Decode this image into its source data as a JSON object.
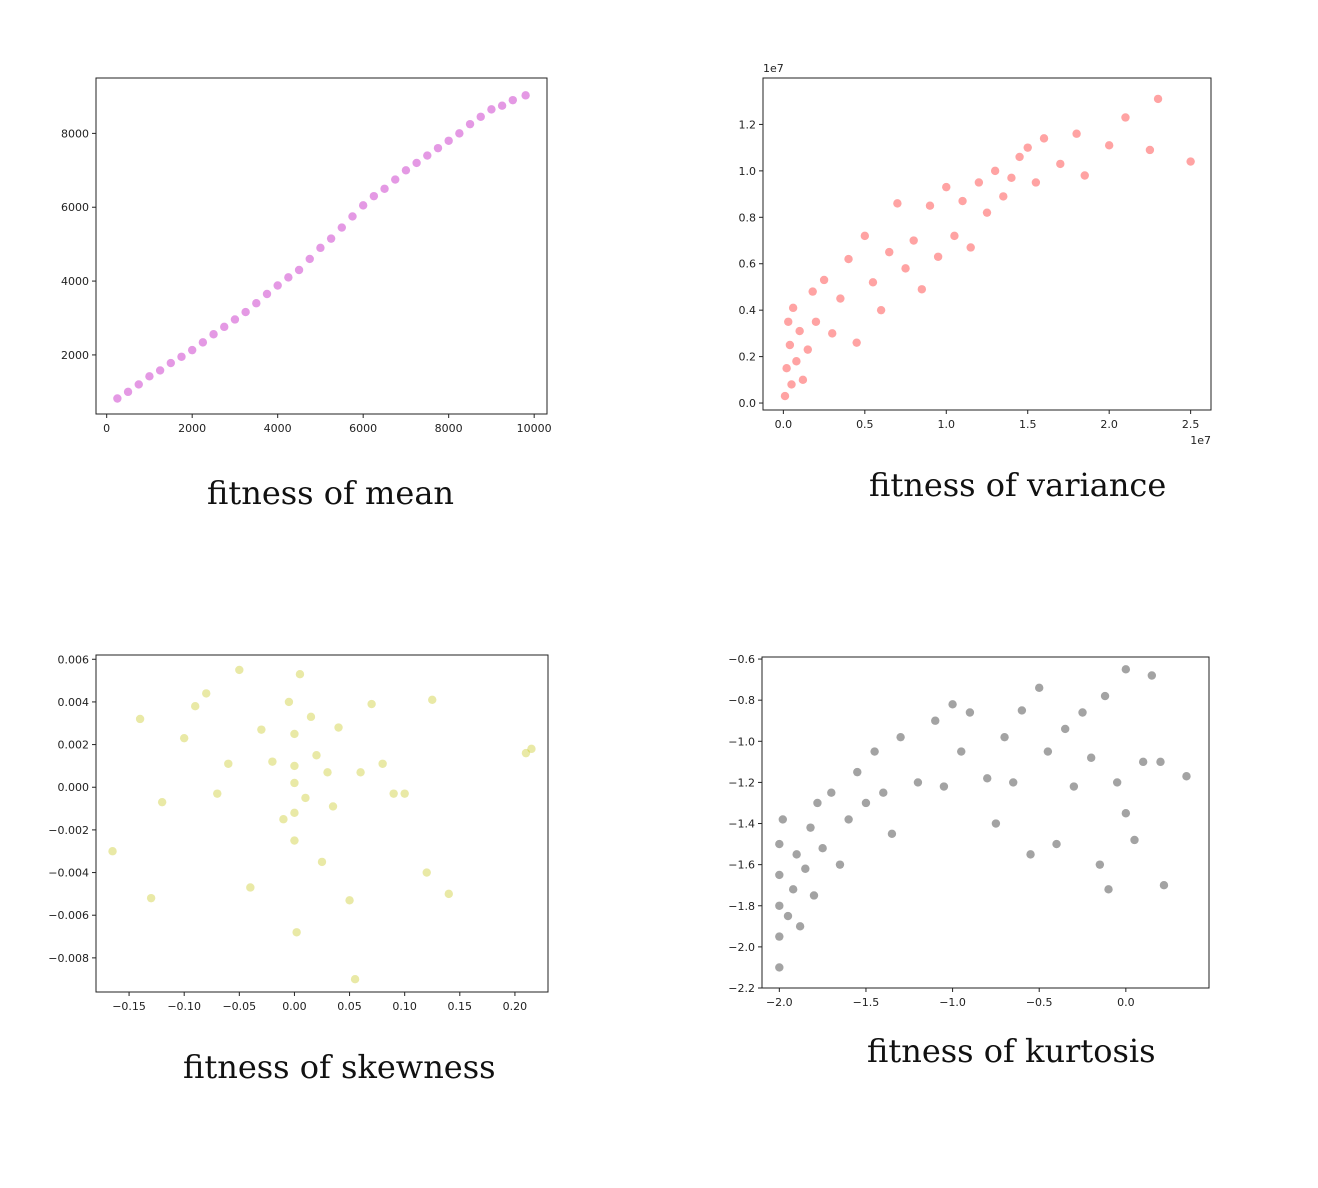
{
  "colors": {
    "mean": "#bb00bb",
    "variance": "#ff1a1a",
    "skewness": "#c8c820",
    "kurtosis": "#333333"
  },
  "captions": {
    "mean": "fitness of mean",
    "variance": "fitness of variance",
    "skewness": "fitness of skewness",
    "kurtosis": "fitness of kurtosis"
  },
  "chart_data": [
    {
      "id": "mean",
      "type": "scatter",
      "title": "",
      "xlabel": "",
      "ylabel": "",
      "xlim": [
        -250,
        10300
      ],
      "ylim": [
        400,
        9500
      ],
      "xticks": [
        0,
        2000,
        4000,
        6000,
        8000,
        10000
      ],
      "xtick_labels": [
        "0",
        "2000",
        "4000",
        "6000",
        "8000",
        "10000"
      ],
      "yticks": [
        2000,
        4000,
        6000,
        8000
      ],
      "ytick_labels": [
        "2000",
        "4000",
        "6000",
        "8000"
      ],
      "x_offset_label": "",
      "y_offset_label": "",
      "color": "#bb00bb",
      "alpha": 0.4,
      "points": [
        [
          250,
          820
        ],
        [
          500,
          1000
        ],
        [
          750,
          1200
        ],
        [
          1000,
          1420
        ],
        [
          1250,
          1580
        ],
        [
          1500,
          1780
        ],
        [
          1750,
          1950
        ],
        [
          2000,
          2130
        ],
        [
          2250,
          2340
        ],
        [
          2500,
          2560
        ],
        [
          2750,
          2760
        ],
        [
          3000,
          2960
        ],
        [
          3250,
          3160
        ],
        [
          3500,
          3400
        ],
        [
          3750,
          3650
        ],
        [
          4000,
          3880
        ],
        [
          4250,
          4100
        ],
        [
          4500,
          4300
        ],
        [
          4750,
          4600
        ],
        [
          5000,
          4900
        ],
        [
          5250,
          5150
        ],
        [
          5500,
          5450
        ],
        [
          5750,
          5750
        ],
        [
          6000,
          6050
        ],
        [
          6250,
          6300
        ],
        [
          6500,
          6500
        ],
        [
          6750,
          6750
        ],
        [
          7000,
          7000
        ],
        [
          7250,
          7200
        ],
        [
          7500,
          7400
        ],
        [
          7750,
          7600
        ],
        [
          8000,
          7800
        ],
        [
          8250,
          8000
        ],
        [
          8500,
          8250
        ],
        [
          8750,
          8450
        ],
        [
          9000,
          8650
        ],
        [
          9250,
          8750
        ],
        [
          9500,
          8900
        ],
        [
          9800,
          9030
        ]
      ]
    },
    {
      "id": "variance",
      "type": "scatter",
      "title": "",
      "xlabel": "",
      "ylabel": "",
      "xlim": [
        -1250000,
        26250000
      ],
      "ylim": [
        -300000,
        14000000
      ],
      "xticks": [
        0,
        5000000,
        10000000,
        15000000,
        20000000,
        25000000
      ],
      "xtick_labels": [
        "0.0",
        "0.5",
        "1.0",
        "1.5",
        "2.0",
        "2.5"
      ],
      "yticks": [
        0,
        2000000,
        4000000,
        6000000,
        8000000,
        10000000,
        12000000
      ],
      "ytick_labels": [
        "0.0",
        "0.2",
        "0.4",
        "0.6",
        "0.8",
        "1.0",
        "1.2"
      ],
      "x_offset_label": "1e7",
      "y_offset_label": "1e7",
      "color": "#ff1a1a",
      "alpha": 0.4,
      "points": [
        [
          100000,
          300000
        ],
        [
          200000,
          1500000
        ],
        [
          300000,
          3500000
        ],
        [
          400000,
          2500000
        ],
        [
          500000,
          800000
        ],
        [
          600000,
          4100000
        ],
        [
          800000,
          1800000
        ],
        [
          1000000,
          3100000
        ],
        [
          1200000,
          1000000
        ],
        [
          1500000,
          2300000
        ],
        [
          1800000,
          4800000
        ],
        [
          2000000,
          3500000
        ],
        [
          2500000,
          5300000
        ],
        [
          3000000,
          3000000
        ],
        [
          3500000,
          4500000
        ],
        [
          4000000,
          6200000
        ],
        [
          4500000,
          2600000
        ],
        [
          5000000,
          7200000
        ],
        [
          5500000,
          5200000
        ],
        [
          6000000,
          4000000
        ],
        [
          6500000,
          6500000
        ],
        [
          7000000,
          8600000
        ],
        [
          7500000,
          5800000
        ],
        [
          8000000,
          7000000
        ],
        [
          8500000,
          4900000
        ],
        [
          9000000,
          8500000
        ],
        [
          9500000,
          6300000
        ],
        [
          10000000,
          9300000
        ],
        [
          10500000,
          7200000
        ],
        [
          11000000,
          8700000
        ],
        [
          11500000,
          6700000
        ],
        [
          12000000,
          9500000
        ],
        [
          12500000,
          8200000
        ],
        [
          13000000,
          10000000
        ],
        [
          13500000,
          8900000
        ],
        [
          14000000,
          9700000
        ],
        [
          14500000,
          10600000
        ],
        [
          15000000,
          11000000
        ],
        [
          15500000,
          9500000
        ],
        [
          16000000,
          11400000
        ],
        [
          17000000,
          10300000
        ],
        [
          18000000,
          11600000
        ],
        [
          18500000,
          9800000
        ],
        [
          20000000,
          11100000
        ],
        [
          21000000,
          12300000
        ],
        [
          22500000,
          10900000
        ],
        [
          23000000,
          13100000
        ],
        [
          25000000,
          10400000
        ]
      ]
    },
    {
      "id": "skewness",
      "type": "scatter",
      "title": "",
      "xlabel": "",
      "ylabel": "",
      "xlim": [
        -0.18,
        0.23
      ],
      "ylim": [
        -0.0096,
        0.0062
      ],
      "xticks": [
        -0.15,
        -0.1,
        -0.05,
        0.0,
        0.05,
        0.1,
        0.15,
        0.2
      ],
      "xtick_labels": [
        "−0.15",
        "−0.10",
        "−0.05",
        "0.00",
        "0.05",
        "0.10",
        "0.15",
        "0.20"
      ],
      "yticks": [
        -0.008,
        -0.006,
        -0.004,
        -0.002,
        0.0,
        0.002,
        0.004,
        0.006
      ],
      "ytick_labels": [
        "−0.008",
        "−0.006",
        "−0.004",
        "−0.002",
        "0.000",
        "0.002",
        "0.004",
        "0.006"
      ],
      "x_offset_label": "",
      "y_offset_label": "",
      "color": "#c8c820",
      "alpha": 0.4,
      "points": [
        [
          -0.165,
          -0.003
        ],
        [
          -0.14,
          0.0032
        ],
        [
          -0.13,
          -0.0052
        ],
        [
          -0.12,
          -0.0007
        ],
        [
          -0.1,
          0.0023
        ],
        [
          -0.09,
          0.0038
        ],
        [
          -0.08,
          0.0044
        ],
        [
          -0.07,
          -0.0003
        ],
        [
          -0.06,
          0.0011
        ],
        [
          -0.05,
          0.0055
        ],
        [
          -0.04,
          -0.0047
        ],
        [
          -0.03,
          0.0027
        ],
        [
          -0.02,
          0.0012
        ],
        [
          -0.01,
          -0.0015
        ],
        [
          -0.005,
          0.004
        ],
        [
          0.0,
          0.0002
        ],
        [
          0.0,
          0.0025
        ],
        [
          0.0,
          -0.0012
        ],
        [
          0.0,
          -0.0025
        ],
        [
          0.0,
          0.001
        ],
        [
          0.002,
          -0.0068
        ],
        [
          0.005,
          0.0053
        ],
        [
          0.01,
          -0.0005
        ],
        [
          0.015,
          0.0033
        ],
        [
          0.02,
          0.0015
        ],
        [
          0.025,
          -0.0035
        ],
        [
          0.03,
          0.0007
        ],
        [
          0.035,
          -0.0009
        ],
        [
          0.04,
          0.0028
        ],
        [
          0.05,
          -0.0053
        ],
        [
          0.055,
          -0.009
        ],
        [
          0.06,
          0.0007
        ],
        [
          0.07,
          0.0039
        ],
        [
          0.08,
          0.0011
        ],
        [
          0.09,
          -0.0003
        ],
        [
          0.1,
          -0.0003
        ],
        [
          0.12,
          -0.004
        ],
        [
          0.125,
          0.0041
        ],
        [
          0.14,
          -0.005
        ],
        [
          0.21,
          0.0016
        ],
        [
          0.215,
          0.0018
        ]
      ]
    },
    {
      "id": "kurtosis",
      "type": "scatter",
      "title": "",
      "xlabel": "",
      "ylabel": "",
      "xlim": [
        -2.1,
        0.48
      ],
      "ylim": [
        -2.2,
        -0.59
      ],
      "xticks": [
        -2.0,
        -1.5,
        -1.0,
        -0.5,
        0.0
      ],
      "xtick_labels": [
        "−2.0",
        "−1.5",
        "−1.0",
        "−0.5",
        "0.0"
      ],
      "yticks": [
        -2.2,
        -2.0,
        -1.8,
        -1.6,
        -1.4,
        -1.2,
        -1.0,
        -0.8,
        -0.6
      ],
      "ytick_labels": [
        "−2.2",
        "−2.0",
        "−1.8",
        "−1.6",
        "−1.4",
        "−1.2",
        "−1.0",
        "−0.8",
        "−0.6"
      ],
      "x_offset_label": "",
      "y_offset_label": "",
      "color": "#333333",
      "alpha": 0.45,
      "points": [
        [
          -2.0,
          -2.1
        ],
        [
          -2.0,
          -1.95
        ],
        [
          -2.0,
          -1.8
        ],
        [
          -2.0,
          -1.65
        ],
        [
          -2.0,
          -1.5
        ],
        [
          -1.98,
          -1.38
        ],
        [
          -1.95,
          -1.85
        ],
        [
          -1.92,
          -1.72
        ],
        [
          -1.9,
          -1.55
        ],
        [
          -1.88,
          -1.9
        ],
        [
          -1.85,
          -1.62
        ],
        [
          -1.82,
          -1.42
        ],
        [
          -1.8,
          -1.75
        ],
        [
          -1.78,
          -1.3
        ],
        [
          -1.75,
          -1.52
        ],
        [
          -1.7,
          -1.25
        ],
        [
          -1.65,
          -1.6
        ],
        [
          -1.6,
          -1.38
        ],
        [
          -1.55,
          -1.15
        ],
        [
          -1.5,
          -1.3
        ],
        [
          -1.45,
          -1.05
        ],
        [
          -1.4,
          -1.25
        ],
        [
          -1.35,
          -1.45
        ],
        [
          -1.3,
          -0.98
        ],
        [
          -1.2,
          -1.2
        ],
        [
          -1.1,
          -0.9
        ],
        [
          -1.05,
          -1.22
        ],
        [
          -1.0,
          -0.82
        ],
        [
          -0.95,
          -1.05
        ],
        [
          -0.9,
          -0.86
        ],
        [
          -0.8,
          -1.18
        ],
        [
          -0.75,
          -1.4
        ],
        [
          -0.7,
          -0.98
        ],
        [
          -0.65,
          -1.2
        ],
        [
          -0.6,
          -0.85
        ],
        [
          -0.55,
          -1.55
        ],
        [
          -0.5,
          -0.74
        ],
        [
          -0.45,
          -1.05
        ],
        [
          -0.4,
          -1.5
        ],
        [
          -0.35,
          -0.94
        ],
        [
          -0.3,
          -1.22
        ],
        [
          -0.25,
          -0.86
        ],
        [
          -0.2,
          -1.08
        ],
        [
          -0.15,
          -1.6
        ],
        [
          -0.12,
          -0.78
        ],
        [
          -0.1,
          -1.72
        ],
        [
          -0.05,
          -1.2
        ],
        [
          0.0,
          -0.65
        ],
        [
          0.0,
          -1.35
        ],
        [
          0.05,
          -1.48
        ],
        [
          0.1,
          -1.1
        ],
        [
          0.15,
          -0.68
        ],
        [
          0.2,
          -1.1
        ],
        [
          0.22,
          -1.7
        ],
        [
          0.35,
          -1.17
        ]
      ]
    }
  ]
}
